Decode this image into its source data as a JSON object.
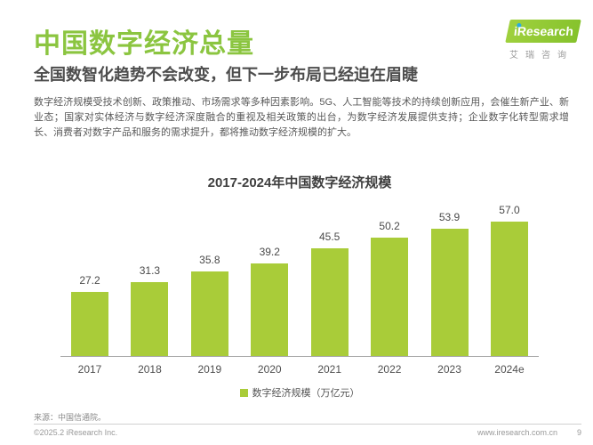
{
  "header": {
    "title": "中国数字经济总量",
    "subtitle": "全国数智化趋势不会改变，但下一步布局已经迫在眉睫",
    "logo": {
      "brand": "iResearch",
      "brand_cn": "艾瑞咨询"
    }
  },
  "intro": {
    "text": "数字经济规模受技术创新、政策推动、市场需求等多种因素影响。5G、人工智能等技术的持续创新应用，会催生新产业、新业态；国家对实体经济与数字经济深度融合的重视及相关政策的出台，为数字经济发展提供支持；企业数字化转型需求增长、消费者对数字产品和服务的需求提升，都将推动数字经济规模的扩大。"
  },
  "chart_data": {
    "type": "bar",
    "title": "2017-2024年中国数字经济规模",
    "categories": [
      "2017",
      "2018",
      "2019",
      "2020",
      "2021",
      "2022",
      "2023",
      "2024e"
    ],
    "values": [
      27.2,
      31.3,
      35.8,
      39.2,
      45.5,
      50.2,
      53.9,
      57.0
    ],
    "value_labels": [
      "27.2",
      "31.3",
      "35.8",
      "39.2",
      "45.5",
      "50.2",
      "53.9",
      "57.0"
    ],
    "legend": "数字经济规模（万亿元）",
    "legend_position": "bottom",
    "bar_color": "#a9cc39",
    "xlabel": "",
    "ylabel": "",
    "ylim": [
      0,
      60
    ],
    "grid": false
  },
  "footer": {
    "source": "来源：中国信通院。",
    "copyright": "©2025.2 iResearch Inc.",
    "website": "www.iresearch.com.cn",
    "page_number": "9"
  }
}
